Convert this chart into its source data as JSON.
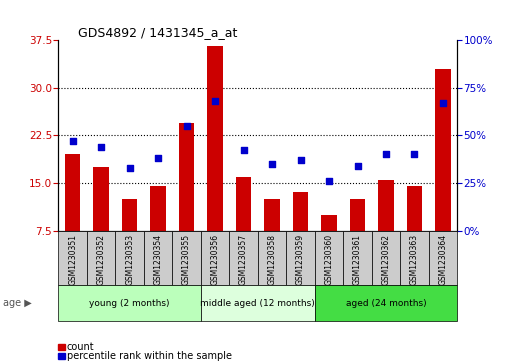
{
  "title": "GDS4892 / 1431345_a_at",
  "samples": [
    "GSM1230351",
    "GSM1230352",
    "GSM1230353",
    "GSM1230354",
    "GSM1230355",
    "GSM1230356",
    "GSM1230357",
    "GSM1230358",
    "GSM1230359",
    "GSM1230360",
    "GSM1230361",
    "GSM1230362",
    "GSM1230363",
    "GSM1230364"
  ],
  "counts": [
    19.5,
    17.5,
    12.5,
    14.5,
    24.5,
    36.5,
    16.0,
    12.5,
    13.5,
    10.0,
    12.5,
    15.5,
    14.5,
    33.0
  ],
  "percentiles": [
    47,
    44,
    33,
    38,
    55,
    68,
    42,
    35,
    37,
    26,
    34,
    40,
    40,
    67
  ],
  "ylim_left": [
    7.5,
    37.5
  ],
  "ylim_right": [
    0,
    100
  ],
  "yticks_left": [
    7.5,
    15.0,
    22.5,
    30.0,
    37.5
  ],
  "yticks_right": [
    0,
    25,
    50,
    75,
    100
  ],
  "bar_color": "#cc0000",
  "dot_color": "#0000cc",
  "groups": [
    {
      "label": "young (2 months)",
      "start": 0,
      "end": 5,
      "color": "#bbffbb"
    },
    {
      "label": "middle aged (12 months)",
      "start": 5,
      "end": 9,
      "color": "#ddffdd"
    },
    {
      "label": "aged (24 months)",
      "start": 9,
      "end": 14,
      "color": "#44dd44"
    }
  ],
  "legend_count_label": "count",
  "legend_percentile_label": "percentile rank within the sample",
  "age_label": "age",
  "tick_label_color_left": "#cc0000",
  "tick_label_color_right": "#0000cc",
  "plot_bg_color": "#ffffff",
  "bar_width": 0.55,
  "sample_box_color": "#cccccc",
  "gridline_ticks": [
    15.0,
    22.5,
    30.0
  ]
}
